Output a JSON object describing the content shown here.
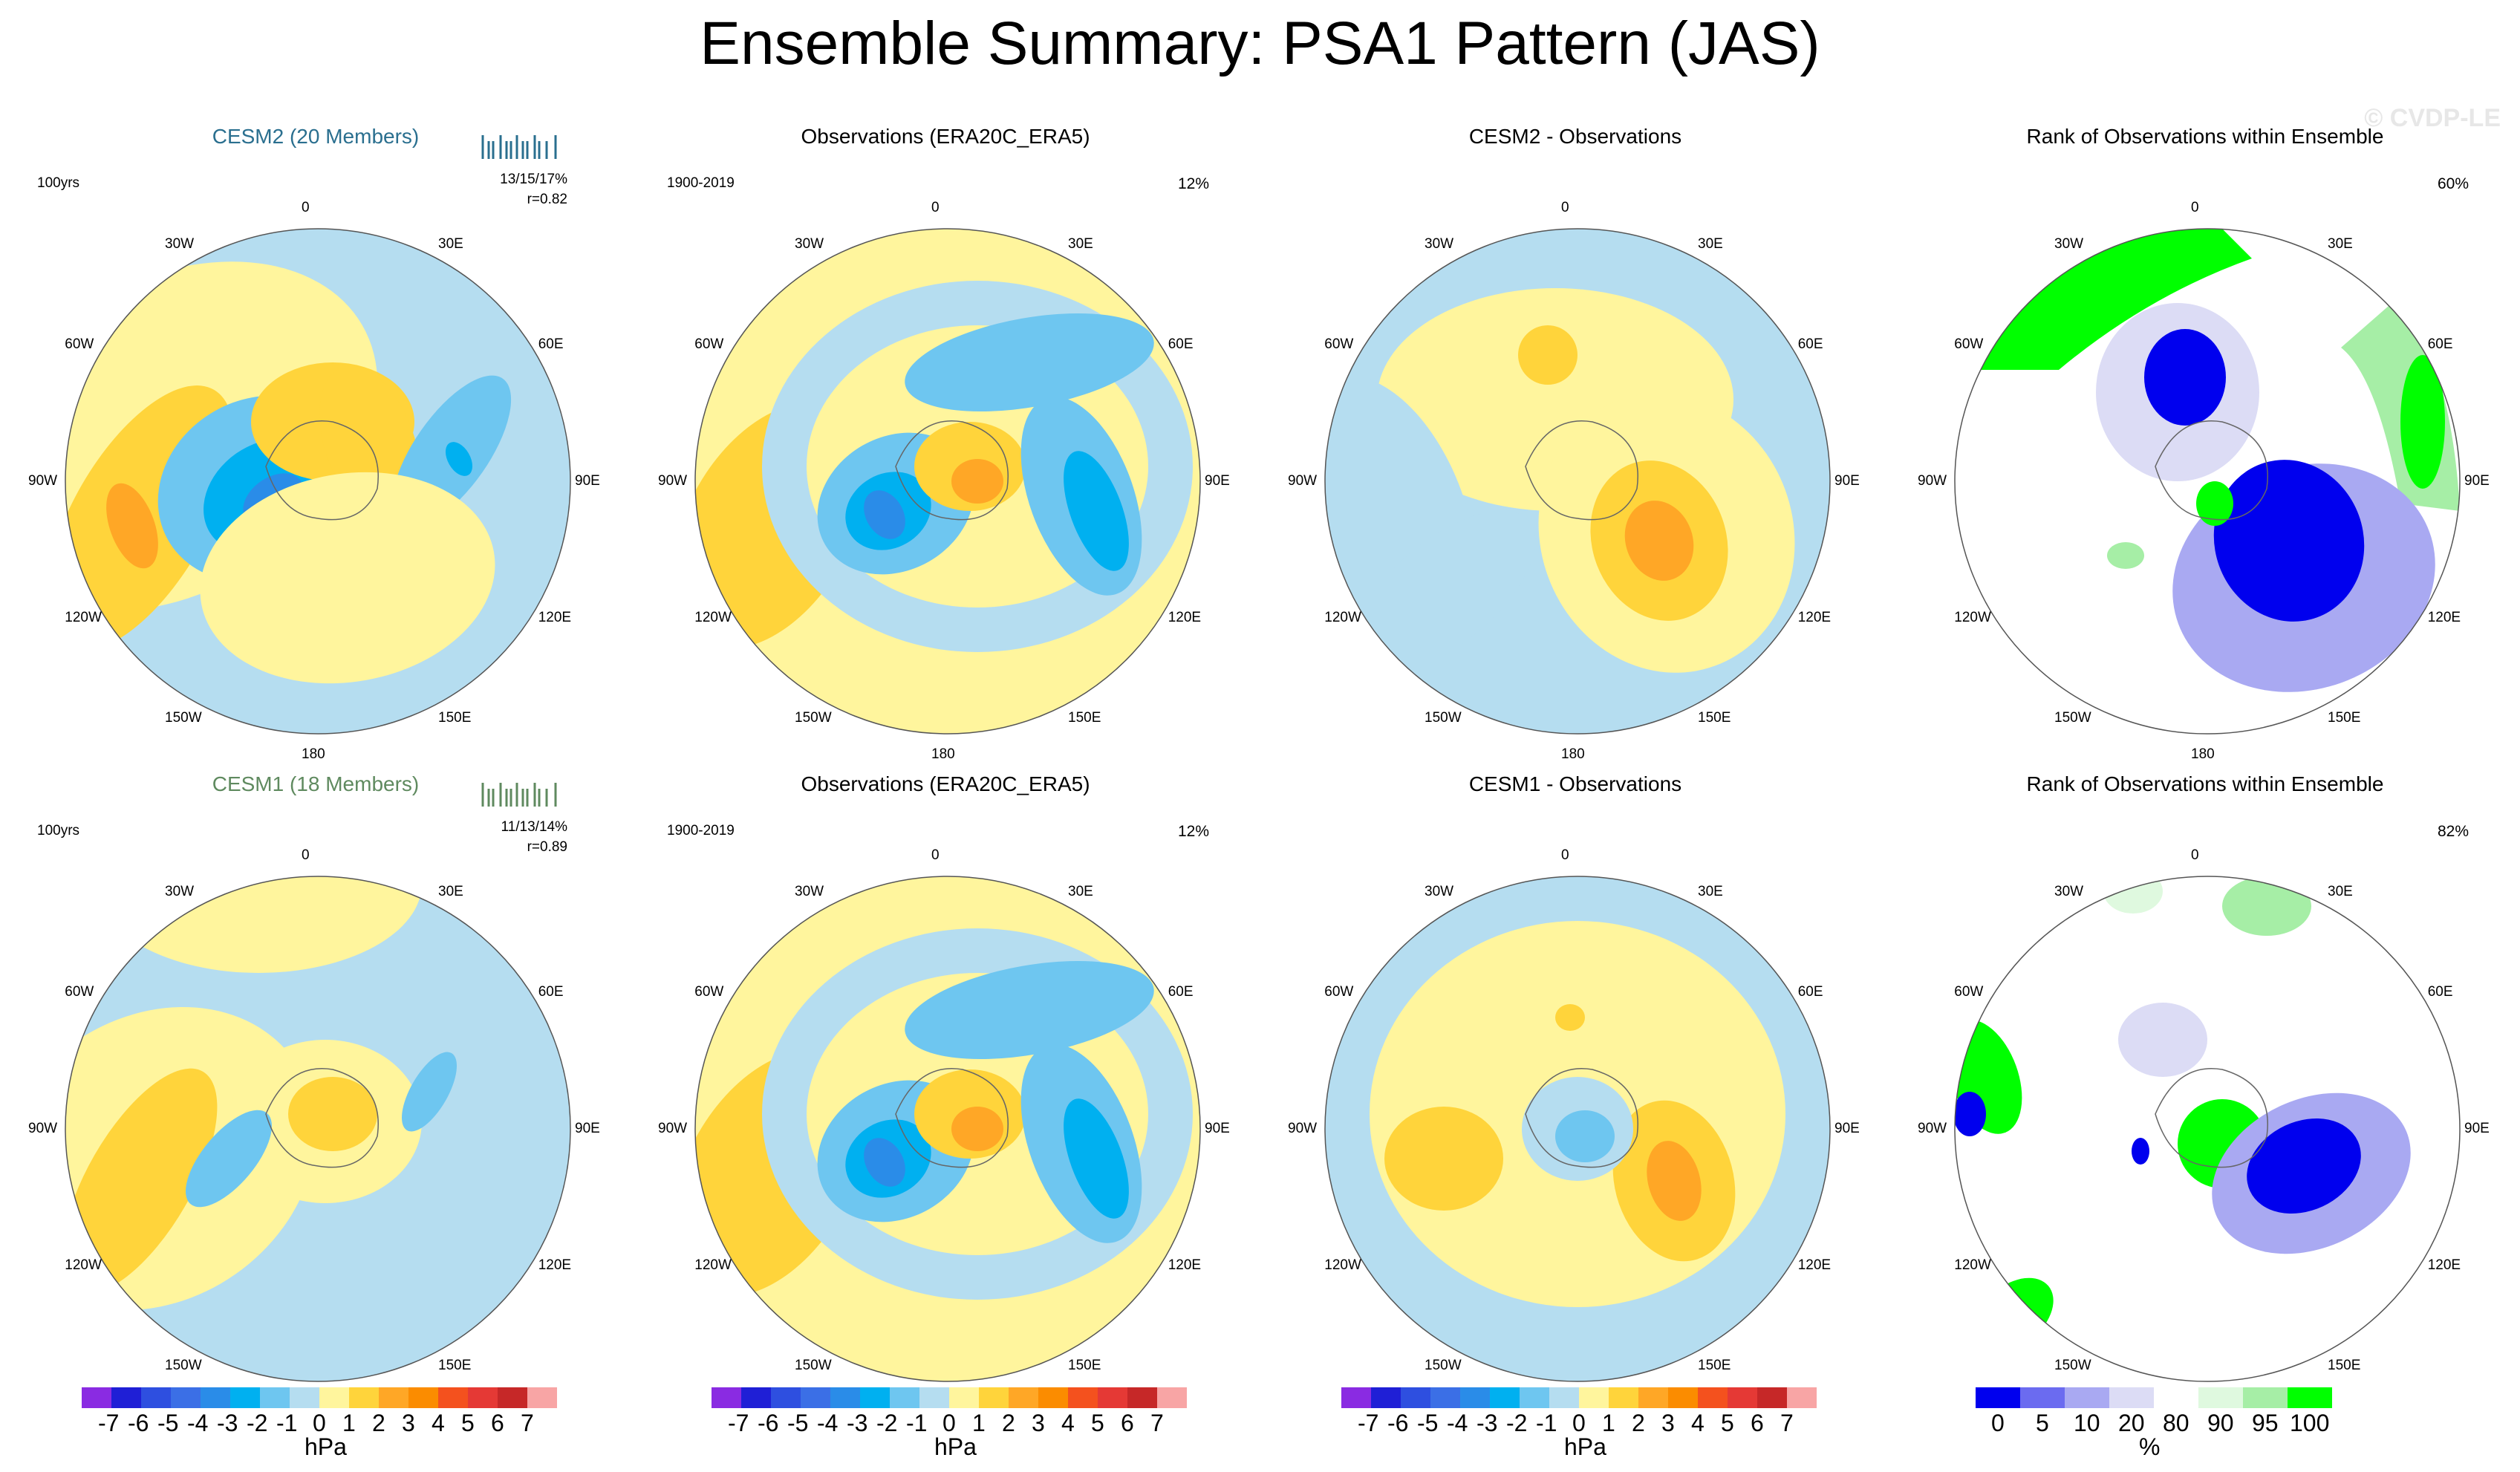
{
  "title": "Ensemble Summary: PSA1 Pattern (JAS)",
  "watermark": "© CVDP-LE",
  "panels": [
    {
      "title": "CESM2 (20 Members)",
      "title_color": "#2a6f8f",
      "top_left": "100yrs",
      "top_right": "",
      "stats_line1": "13/15/17%",
      "stats_line2": "r=0.82",
      "tick_color": "#2a6f8f",
      "type": "hpa",
      "variant": "cesm2"
    },
    {
      "title": "Observations (ERA20C_ERA5)",
      "title_color": "#000000",
      "top_left": "1900-2019",
      "top_right": "12%",
      "stats_line1": "",
      "stats_line2": "",
      "type": "hpa",
      "variant": "obs"
    },
    {
      "title": "CESM2 - Observations",
      "title_color": "#000000",
      "top_left": "",
      "top_right": "",
      "stats_line1": "",
      "stats_line2": "",
      "type": "hpa",
      "variant": "diff2"
    },
    {
      "title": "Rank of Observations within Ensemble",
      "title_color": "#000000",
      "top_left": "",
      "top_right": "60%",
      "stats_line1": "",
      "stats_line2": "",
      "type": "rank",
      "variant": "rank2"
    },
    {
      "title": "CESM1 (18 Members)",
      "title_color": "#5f8a5f",
      "top_left": "100yrs",
      "top_right": "",
      "stats_line1": "11/13/14%",
      "stats_line2": "r=0.89",
      "tick_color": "#5f8a5f",
      "type": "hpa",
      "variant": "cesm1"
    },
    {
      "title": "Observations (ERA20C_ERA5)",
      "title_color": "#000000",
      "top_left": "1900-2019",
      "top_right": "12%",
      "stats_line1": "",
      "stats_line2": "",
      "type": "hpa",
      "variant": "obs"
    },
    {
      "title": "CESM1 - Observations",
      "title_color": "#000000",
      "top_left": "",
      "top_right": "",
      "stats_line1": "",
      "stats_line2": "",
      "type": "hpa",
      "variant": "diff1"
    },
    {
      "title": "Rank of Observations within Ensemble",
      "title_color": "#000000",
      "top_left": "",
      "top_right": "82%",
      "stats_line1": "",
      "stats_line2": "",
      "type": "rank",
      "variant": "rank1"
    }
  ],
  "lon_labels": [
    "0",
    "30E",
    "60E",
    "90E",
    "120E",
    "150E",
    "180",
    "150W",
    "120W",
    "90W",
    "60W",
    "30W"
  ],
  "colorbars": {
    "hpa": {
      "unit": "hPa",
      "tick_labels": [
        "-7",
        "-6",
        "-5",
        "-4",
        "-3",
        "-2",
        "-1",
        "0",
        "1",
        "2",
        "3",
        "4",
        "5",
        "6",
        "7"
      ],
      "colors": [
        "#8a2be2",
        "#1f1fd6",
        "#2e4fe0",
        "#3b6fe6",
        "#2a8ce8",
        "#00b0f0",
        "#6ec6f0",
        "#b5ddf0",
        "#fff59d",
        "#ffd43b",
        "#ffa726",
        "#fb8c00",
        "#f4511e",
        "#e53935",
        "#c62828",
        "#f8a5a5"
      ]
    },
    "rank": {
      "unit": "%",
      "tick_labels": [
        "0",
        "5",
        "10",
        "20",
        "80",
        "90",
        "95",
        "100"
      ],
      "colors": [
        "#0000ee",
        "#6b6bf0",
        "#a9a9f2",
        "#dcdcf5",
        "#ffffff",
        "#dff9df",
        "#a6eea6",
        "#00ff00"
      ]
    }
  },
  "chart_data": {
    "type": "heatmap",
    "projection": "south polar stereographic",
    "title": "Ensemble Summary: PSA1 Pattern (JAS)",
    "units": "hPa",
    "contour_levels": [
      -7,
      -6,
      -5,
      -4,
      -3,
      -2,
      -1,
      0,
      1,
      2,
      3,
      4,
      5,
      6,
      7
    ],
    "rank_levels": [
      0,
      5,
      10,
      20,
      80,
      90,
      95,
      100
    ],
    "panels": [
      {
        "name": "CESM2 (20 Members)",
        "period": "100yrs",
        "pct_var": "13/15/17%",
        "pattern_corr": 0.82
      },
      {
        "name": "Observations (ERA20C_ERA5)",
        "period": "1900-2019",
        "pct_var": "12%"
      },
      {
        "name": "CESM2 - Observations"
      },
      {
        "name": "Rank of Observations within Ensemble",
        "pct": "60%"
      },
      {
        "name": "CESM1 (18 Members)",
        "period": "100yrs",
        "pct_var": "11/13/14%",
        "pattern_corr": 0.89
      },
      {
        "name": "Observations (ERA20C_ERA5)",
        "period": "1900-2019",
        "pct_var": "12%"
      },
      {
        "name": "CESM1 - Observations"
      },
      {
        "name": "Rank of Observations within Ensemble",
        "pct": "82%"
      }
    ]
  }
}
